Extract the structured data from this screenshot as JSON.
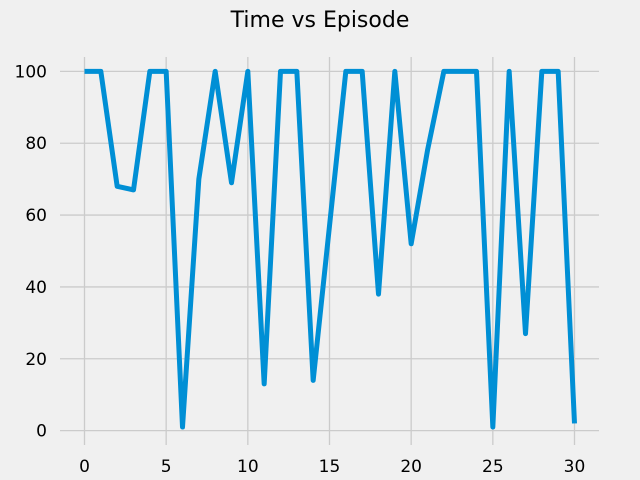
{
  "chart_data": {
    "type": "line",
    "title": "Time vs Episode",
    "xlabel": "",
    "ylabel": "",
    "xlim": [
      -1.5,
      31.5
    ],
    "ylim": [
      -4,
      104
    ],
    "xticks": [
      0,
      5,
      10,
      15,
      20,
      25,
      30
    ],
    "yticks": [
      0,
      20,
      40,
      60,
      80,
      100
    ],
    "grid": true,
    "legend": "none",
    "style": {
      "background": "#f0f0f0",
      "grid_color": "#cbcbcb",
      "line_color": "#008fd5"
    },
    "series": [
      {
        "color": "#008fd5",
        "x": [
          0,
          1,
          2,
          3,
          4,
          5,
          6,
          7,
          8,
          9,
          10,
          11,
          12,
          13,
          14,
          15,
          16,
          17,
          18,
          19,
          20,
          21,
          22,
          23,
          24,
          25,
          26,
          27,
          28,
          29,
          30
        ],
        "y": [
          100,
          100,
          68,
          67,
          100,
          100,
          1,
          70,
          100,
          69,
          100,
          13,
          100,
          100,
          14,
          57,
          100,
          100,
          38,
          100,
          52,
          78,
          100,
          100,
          100,
          1,
          100,
          27,
          100,
          100,
          2
        ]
      }
    ]
  }
}
